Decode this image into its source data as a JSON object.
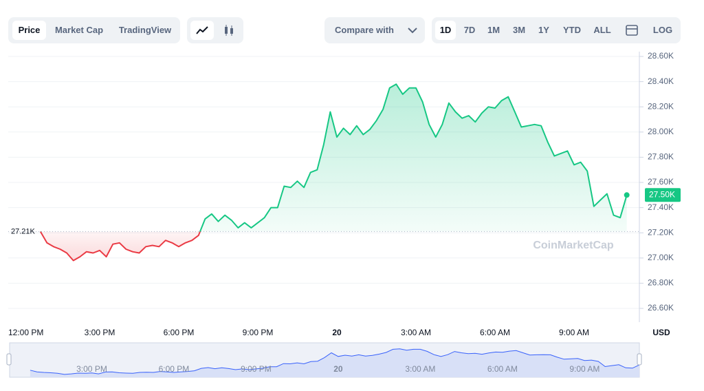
{
  "ui": {
    "tabs": [
      "Price",
      "Market Cap",
      "TradingView"
    ],
    "compare": "Compare with",
    "ranges": [
      "1D",
      "7D",
      "1M",
      "3M",
      "1Y",
      "YTD",
      "ALL"
    ],
    "log": "LOG",
    "currency": "USD",
    "watermark": "CoinMarketCap"
  },
  "chart_data": {
    "type": "line",
    "categories": [
      "12:00 PM",
      null,
      null,
      null,
      null,
      null,
      null,
      null,
      null,
      null,
      null,
      null,
      "3:00 PM",
      null,
      null,
      null,
      null,
      null,
      null,
      null,
      null,
      null,
      null,
      null,
      "6:00 PM",
      null,
      null,
      null,
      null,
      null,
      null,
      null,
      null,
      null,
      null,
      null,
      "9:00 PM",
      null,
      null,
      null,
      null,
      null,
      null,
      null,
      null,
      null,
      null,
      null,
      "20",
      null,
      null,
      null,
      null,
      null,
      null,
      null,
      null,
      null,
      null,
      null,
      "3:00 AM",
      null,
      null,
      null,
      null,
      null,
      null,
      null,
      null,
      null,
      null,
      null,
      "6:00 AM",
      null,
      null,
      null,
      null,
      null,
      null,
      null,
      null,
      null,
      null,
      null,
      "9:00 AM",
      null,
      null,
      null,
      null,
      null,
      null,
      null,
      null
    ],
    "values": [
      null,
      null,
      null,
      27210,
      27120,
      27090,
      27070,
      27040,
      26980,
      27010,
      27050,
      27040,
      27060,
      27010,
      27110,
      27120,
      27070,
      27050,
      27040,
      27090,
      27100,
      27090,
      27140,
      27120,
      27090,
      27120,
      27140,
      27180,
      27310,
      27350,
      27290,
      27340,
      27300,
      27240,
      27280,
      27240,
      27280,
      27320,
      27400,
      27400,
      27570,
      27560,
      27610,
      27560,
      27680,
      27700,
      27900,
      28160,
      27960,
      28030,
      27980,
      28050,
      27980,
      28020,
      28090,
      28180,
      28350,
      28380,
      28300,
      28350,
      28350,
      28240,
      28060,
      27960,
      28060,
      28230,
      28160,
      28110,
      28130,
      28080,
      28150,
      28200,
      28190,
      28250,
      28280,
      28160,
      28040,
      28050,
      28060,
      28050,
      27920,
      27810,
      27830,
      27850,
      27740,
      27760,
      27690,
      27410,
      27460,
      27510,
      27340,
      27320,
      27500
    ],
    "color_up": "#16c784",
    "color_down": "#ea3943",
    "reference": {
      "value": 27210,
      "label": "27.21K"
    },
    "current": {
      "value": 27500,
      "label": "27.50K"
    },
    "ylim": [
      26500,
      28700
    ],
    "yticks": [
      {
        "value": 28600,
        "label": "28.60K"
      },
      {
        "value": 28400,
        "label": "28.40K"
      },
      {
        "value": 28200,
        "label": "28.20K"
      },
      {
        "value": 28000,
        "label": "28.00K"
      },
      {
        "value": 27800,
        "label": "27.80K"
      },
      {
        "value": 27600,
        "label": "27.60K"
      },
      {
        "value": 27400,
        "label": "27.40K"
      },
      {
        "value": 27200,
        "label": "27.20K"
      },
      {
        "value": 27000,
        "label": "27.00K"
      },
      {
        "value": 26800,
        "label": "26.80K"
      },
      {
        "value": 26600,
        "label": "26.60K"
      }
    ],
    "grid": true
  }
}
